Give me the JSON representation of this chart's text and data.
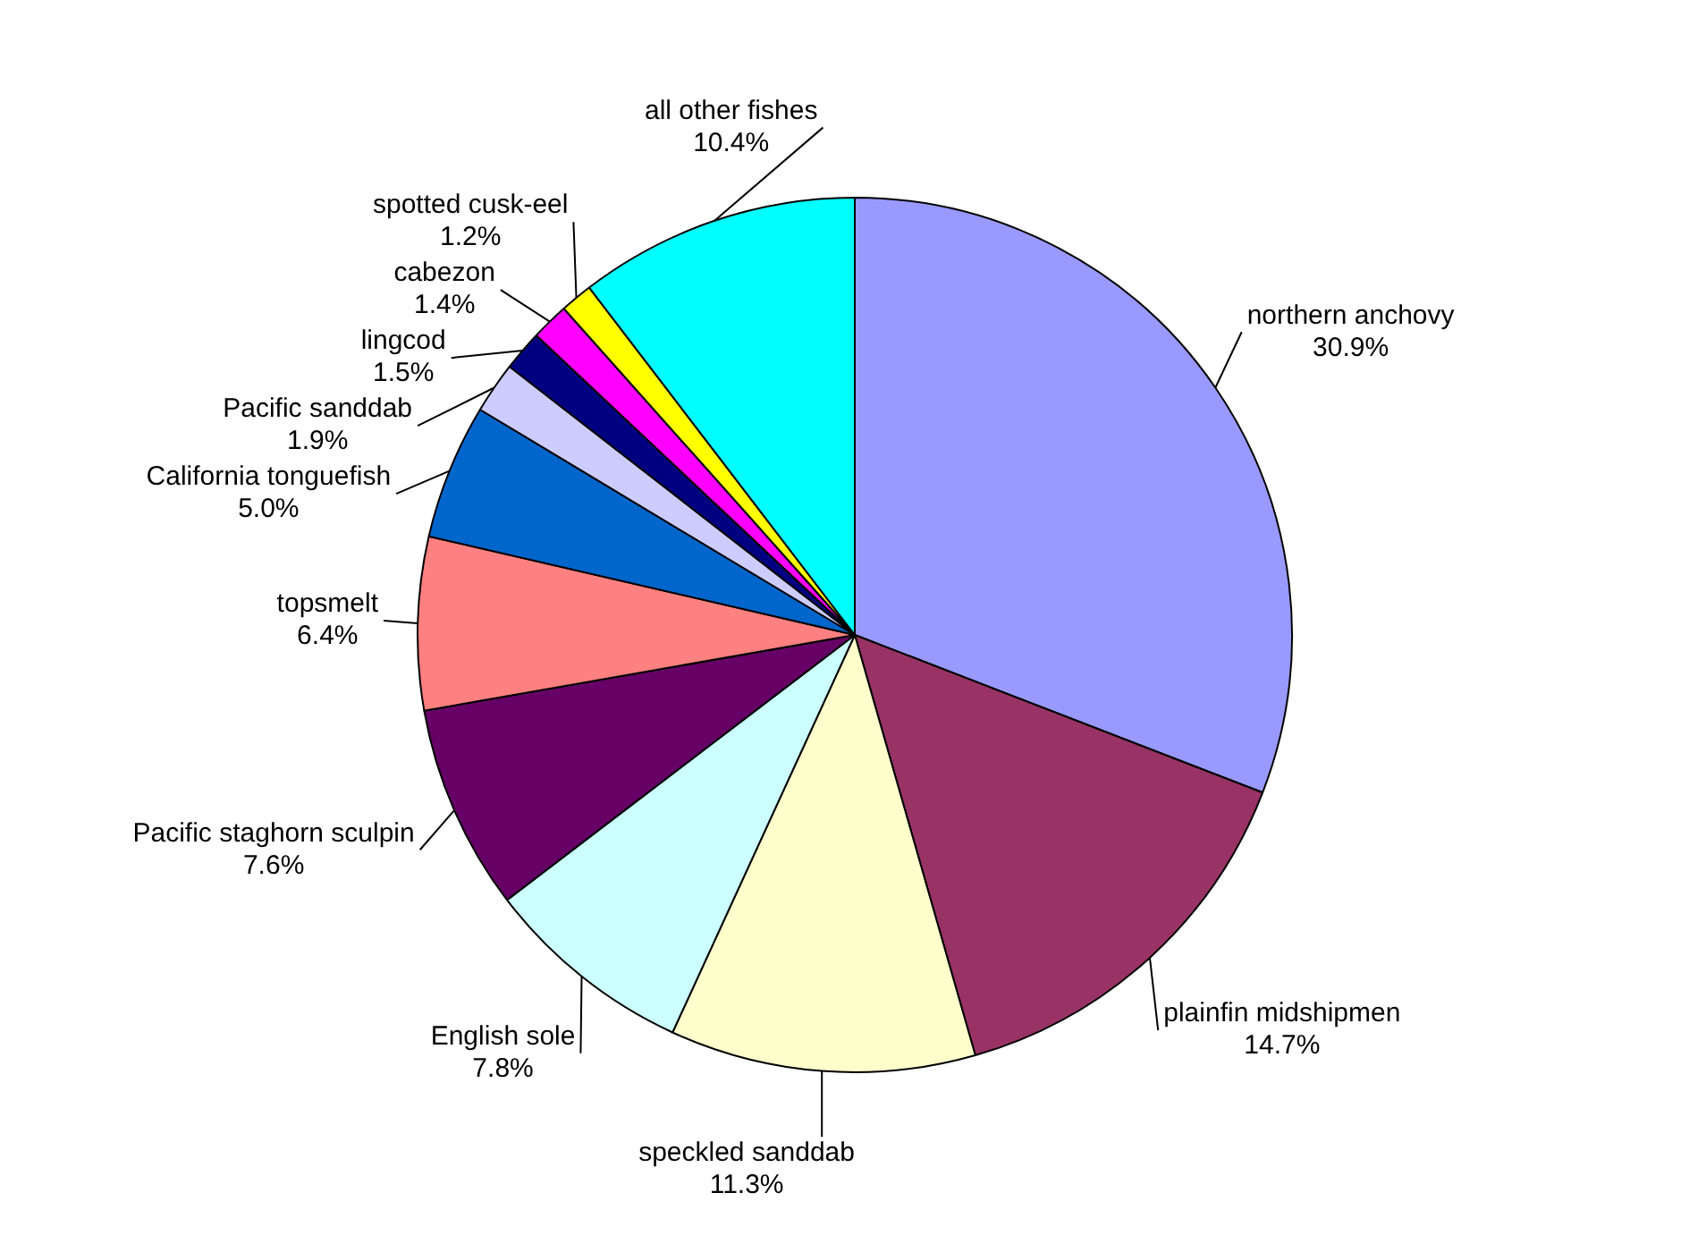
{
  "chart_data": {
    "type": "pie",
    "legend": false,
    "categories": [
      "northern anchovy",
      "plainfin midshipmen",
      "speckled sanddab",
      "English sole",
      "Pacific staghorn sculpin",
      "topsmelt",
      "California tonguefish",
      "Pacific sanddab",
      "lingcod",
      "cabezon",
      "spotted cusk-eel",
      "all other fishes"
    ],
    "values": [
      30.9,
      14.7,
      11.3,
      7.8,
      7.6,
      6.4,
      5.0,
      1.9,
      1.5,
      1.4,
      1.2,
      10.4
    ],
    "value_labels": [
      "30.9%",
      "14.7%",
      "11.3%",
      "7.8%",
      "7.6%",
      "6.4%",
      "5.0%",
      "1.9%",
      "1.5%",
      "1.4%",
      "1.2%",
      "10.4%"
    ],
    "colors": [
      "#9999ff",
      "#993366",
      "#ffffcc",
      "#ccffff",
      "#660066",
      "#ff8080",
      "#0066cc",
      "#ccccff",
      "#000080",
      "#ff00ff",
      "#ffff00",
      "#00ffff"
    ]
  }
}
